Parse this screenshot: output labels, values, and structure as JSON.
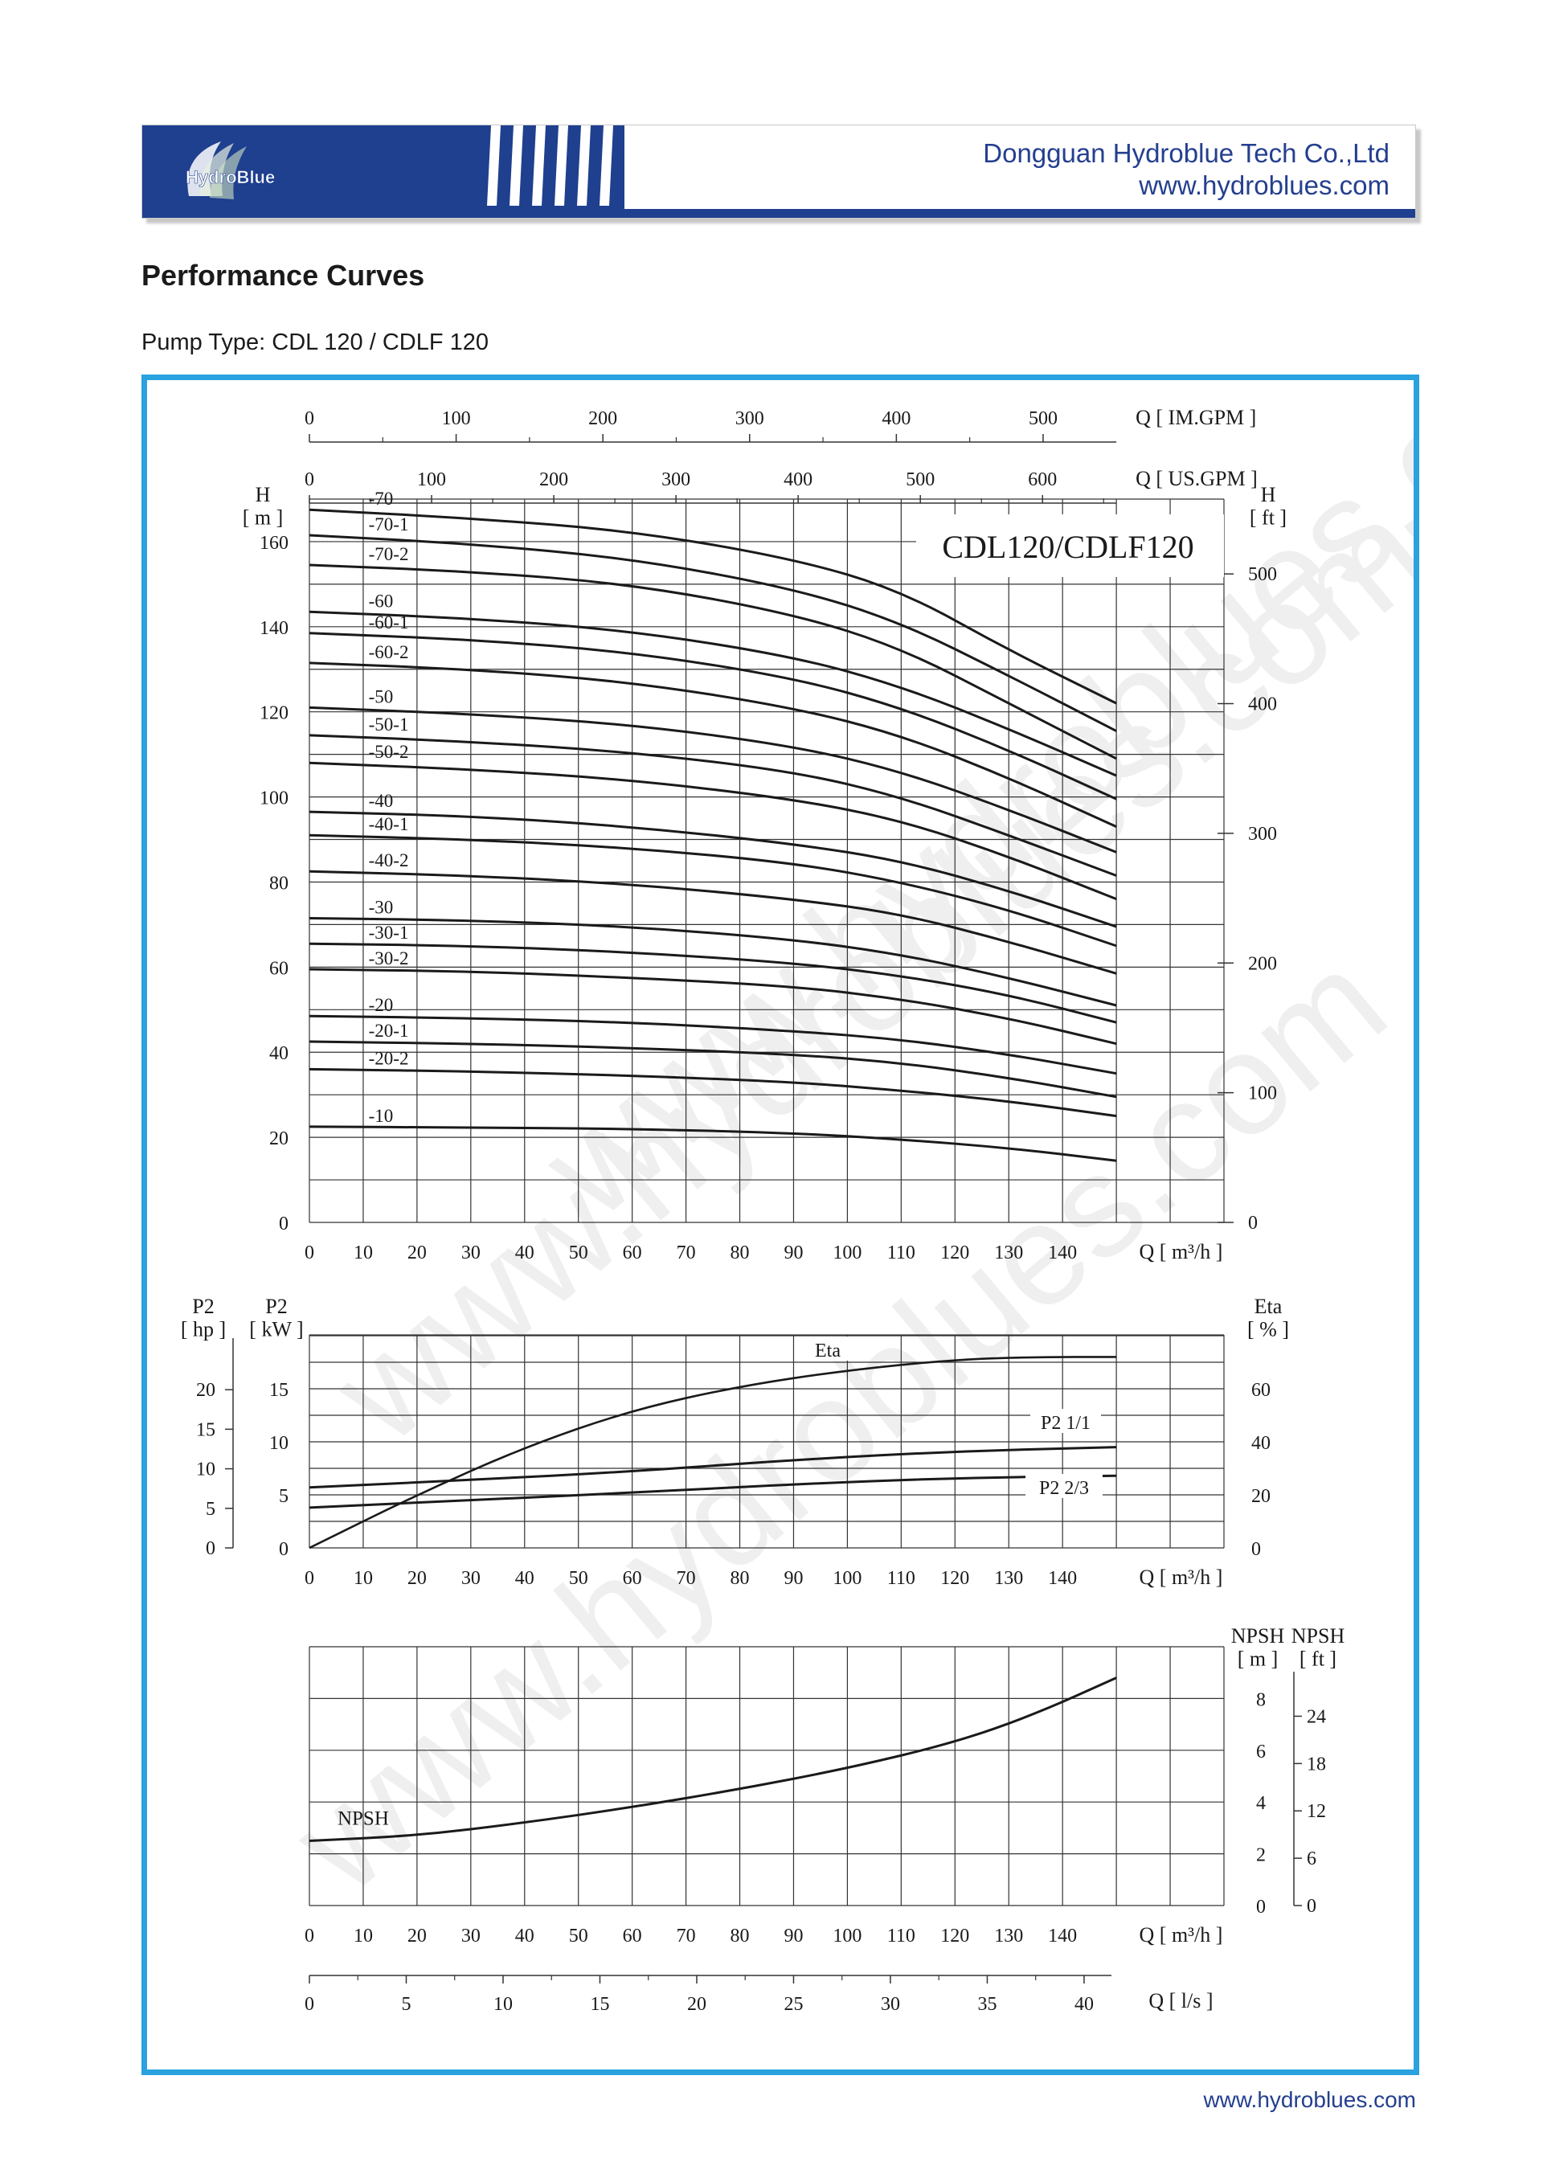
{
  "header": {
    "logo_text": "HydroBlue",
    "company_name": "Dongguan Hydroblue Tech Co.,Ltd",
    "website": "www.hydroblues.com"
  },
  "page": {
    "section_title": "Performance Curves",
    "pump_type": "Pump Type: CDL 120 / CDLF 120",
    "footer_url": "www.hydroblues.com",
    "watermark": "www.hydroblues.com"
  },
  "colors": {
    "accent": "#2aa2df",
    "brand": "#1f3f8f",
    "curve": "#1a1a1a",
    "grid": "#333333"
  },
  "chart_data": [
    {
      "type": "line",
      "title": "CDL120/CDLF120",
      "xlabel": "Q [ m³/h ]",
      "ylabel": "H\n[ m ]",
      "ylabel_right": "H\n[ ft ]",
      "top_axis_im": {
        "label": "Q [ IM.GPM ]",
        "ticks": [
          0,
          100,
          200,
          300,
          400,
          500
        ]
      },
      "top_axis_us": {
        "label": "Q [ US.GPM ]",
        "ticks": [
          0,
          100,
          200,
          300,
          400,
          500,
          600
        ]
      },
      "x_ticks": [
        0,
        10,
        20,
        30,
        40,
        50,
        60,
        70,
        80,
        90,
        100,
        110,
        120,
        130,
        140
      ],
      "y_ticks": [
        0,
        20,
        40,
        60,
        80,
        100,
        120,
        140,
        160
      ],
      "y_right_ticks": [
        0,
        100,
        200,
        300,
        400,
        500
      ],
      "xlim": [
        0,
        170
      ],
      "ylim": [
        0,
        170
      ],
      "grid": true,
      "series": [
        {
          "name": "-70",
          "x": [
            0,
            30,
            60,
            90,
            110,
            130,
            150
          ],
          "y": [
            167.5,
            165.5,
            162.5,
            156,
            148.5,
            134.5,
            122
          ]
        },
        {
          "name": "-70-1",
          "x": [
            0,
            30,
            60,
            90,
            110,
            130,
            150
          ],
          "y": [
            161.5,
            159.5,
            156,
            149,
            141,
            128.5,
            115.5
          ]
        },
        {
          "name": "-70-2",
          "x": [
            0,
            30,
            60,
            90,
            110,
            130,
            150
          ],
          "y": [
            154.5,
            153,
            150,
            143,
            135,
            122,
            109
          ]
        },
        {
          "name": "-60",
          "x": [
            0,
            30,
            60,
            90,
            110,
            130,
            150
          ],
          "y": [
            143.5,
            142,
            139,
            133,
            126,
            116,
            105
          ]
        },
        {
          "name": "-60-1",
          "x": [
            0,
            30,
            60,
            90,
            110,
            130,
            150
          ],
          "y": [
            138.5,
            137,
            134,
            128,
            121,
            111,
            99.5
          ]
        },
        {
          "name": "-60-2",
          "x": [
            0,
            30,
            60,
            90,
            110,
            130,
            150
          ],
          "y": [
            131.5,
            130,
            127,
            121,
            114.5,
            104.5,
            93
          ]
        },
        {
          "name": "-50",
          "x": [
            0,
            30,
            60,
            90,
            110,
            130,
            150
          ],
          "y": [
            121,
            119.5,
            117,
            112,
            106,
            97,
            87
          ]
        },
        {
          "name": "-50-1",
          "x": [
            0,
            30,
            60,
            90,
            110,
            130,
            150
          ],
          "y": [
            114.5,
            113,
            110.5,
            106,
            100,
            91,
            81.5
          ]
        },
        {
          "name": "-50-2",
          "x": [
            0,
            30,
            60,
            90,
            110,
            130,
            150
          ],
          "y": [
            108,
            106.5,
            104,
            99.5,
            94.5,
            86,
            76
          ]
        },
        {
          "name": "-40",
          "x": [
            0,
            30,
            60,
            90,
            110,
            130,
            150
          ],
          "y": [
            96.5,
            95.5,
            93,
            89,
            85,
            78,
            69.5
          ]
        },
        {
          "name": "-40-1",
          "x": [
            0,
            30,
            60,
            90,
            110,
            130,
            150
          ],
          "y": [
            91,
            90,
            88,
            84.5,
            80,
            73.5,
            65
          ]
        },
        {
          "name": "-40-2",
          "x": [
            0,
            30,
            60,
            90,
            110,
            130,
            150
          ],
          "y": [
            82.5,
            81.5,
            79.5,
            76,
            72.5,
            66,
            58.5
          ]
        },
        {
          "name": "-30",
          "x": [
            0,
            30,
            60,
            90,
            110,
            130,
            150
          ],
          "y": [
            71.5,
            71,
            69.5,
            66.5,
            63,
            57.5,
            51
          ]
        },
        {
          "name": "-30-1",
          "x": [
            0,
            30,
            60,
            90,
            110,
            130,
            150
          ],
          "y": [
            65.5,
            65,
            63.5,
            61,
            58,
            53.5,
            47
          ]
        },
        {
          "name": "-30-2",
          "x": [
            0,
            30,
            60,
            90,
            110,
            130,
            150
          ],
          "y": [
            59.5,
            59,
            57.5,
            55.5,
            52.5,
            48,
            42
          ]
        },
        {
          "name": "-20",
          "x": [
            0,
            30,
            60,
            90,
            110,
            130,
            150
          ],
          "y": [
            48.5,
            48,
            47,
            45,
            43,
            39.5,
            35
          ]
        },
        {
          "name": "-20-1",
          "x": [
            0,
            30,
            60,
            90,
            110,
            130,
            150
          ],
          "y": [
            42.5,
            42,
            41,
            39.5,
            37.5,
            34,
            29.5
          ]
        },
        {
          "name": "-20-2",
          "x": [
            0,
            30,
            60,
            90,
            110,
            130,
            150
          ],
          "y": [
            36,
            35.5,
            34.5,
            33,
            31,
            28.5,
            25
          ]
        },
        {
          "name": "-10",
          "x": [
            0,
            30,
            60,
            90,
            110,
            130,
            150
          ],
          "y": [
            22.5,
            22.3,
            22,
            21,
            19.5,
            17.5,
            14.5
          ]
        }
      ]
    },
    {
      "type": "line",
      "xlabel": "Q [ m³/h ]",
      "ylabel": "P2\n[ kW ]",
      "ylabel_hp": "P2\n[ hp ]",
      "ylabel_right": "Eta\n[ % ]",
      "x_ticks": [
        0,
        10,
        20,
        30,
        40,
        50,
        60,
        70,
        80,
        90,
        100,
        110,
        120,
        130,
        140
      ],
      "y_ticks_kw": [
        0,
        5,
        10,
        15
      ],
      "y_ticks_hp": [
        0,
        5,
        10,
        15,
        20
      ],
      "y_ticks_eta": [
        0,
        20,
        40,
        60
      ],
      "xlim": [
        0,
        170
      ],
      "ylim_kw": [
        0,
        20
      ],
      "grid": true,
      "series": [
        {
          "name": "Eta",
          "axis": "eta",
          "x": [
            0,
            20,
            40,
            60,
            80,
            100,
            120,
            135,
            150
          ],
          "y": [
            0,
            20,
            38,
            52,
            61,
            67,
            71,
            72,
            72
          ]
        },
        {
          "name": "P2 1/1",
          "axis": "kw",
          "x": [
            0,
            30,
            60,
            90,
            120,
            150
          ],
          "y": [
            5.7,
            6.4,
            7.2,
            8.3,
            9.1,
            9.5
          ]
        },
        {
          "name": "P2 2/3",
          "axis": "kw",
          "x": [
            0,
            30,
            60,
            90,
            120,
            150
          ],
          "y": [
            3.8,
            4.5,
            5.2,
            6.0,
            6.6,
            6.8
          ]
        }
      ]
    },
    {
      "type": "line",
      "xlabel": "Q [ m³/h ]",
      "ylabel_right": "NPSH\n[ m ]",
      "ylabel_right_ft": "NPSH\n[ ft ]",
      "x_ticks": [
        0,
        10,
        20,
        30,
        40,
        50,
        60,
        70,
        80,
        90,
        100,
        110,
        120,
        130,
        140
      ],
      "y_ticks": [
        0,
        2,
        4,
        6,
        8
      ],
      "y_ticks_ft": [
        0,
        6,
        12,
        18,
        24
      ],
      "xlim": [
        0,
        170
      ],
      "ylim": [
        0,
        10
      ],
      "grid": true,
      "series": [
        {
          "name": "NPSH",
          "x": [
            0,
            20,
            40,
            60,
            80,
            100,
            120,
            135,
            150
          ],
          "y": [
            2.5,
            2.7,
            3.2,
            3.8,
            4.5,
            5.3,
            6.3,
            7.4,
            8.8
          ]
        }
      ],
      "ls_axis": {
        "label": "Q [ l/s ]",
        "ticks": [
          0,
          5,
          10,
          15,
          20,
          25,
          30,
          35,
          40
        ]
      }
    }
  ]
}
